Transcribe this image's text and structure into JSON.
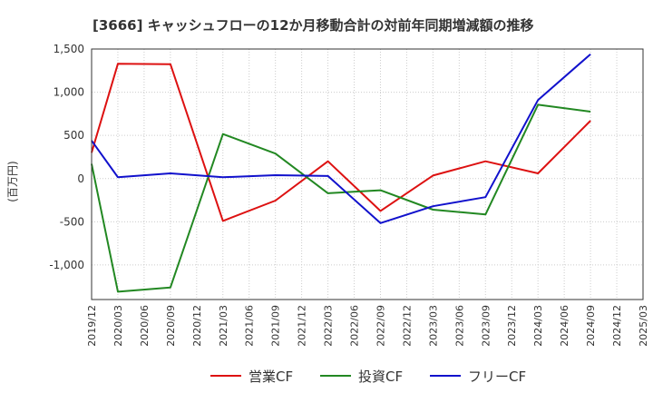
{
  "chart_data": {
    "type": "line",
    "title": "[3666]  キャッシュフローの12か月移動合計の対前年同期増減額の推移",
    "ylabel": "(百万円)",
    "xlabel": "",
    "ylim": [
      -1400,
      1500
    ],
    "yticks": [
      1500,
      1000,
      500,
      0,
      -500,
      -1000
    ],
    "ytick_labels": [
      "1,500",
      "1,000",
      "500",
      "0",
      "-500",
      "-1,000"
    ],
    "categories": [
      "2019/12",
      "2020/03",
      "2020/06",
      "2020/09",
      "2020/12",
      "2021/03",
      "2021/06",
      "2021/09",
      "2021/12",
      "2022/03",
      "2022/06",
      "2022/09",
      "2022/12",
      "2023/03",
      "2023/06",
      "2023/09",
      "2023/12",
      "2024/03",
      "2024/06",
      "2024/09",
      "2024/12",
      "2025/03"
    ],
    "grid": true,
    "legend_position": "bottom",
    "series": [
      {
        "name": "営業CF",
        "color": "#dd1111",
        "points": [
          {
            "x": "2019/12",
            "y": 300
          },
          {
            "x": "2020/03",
            "y": 1330
          },
          {
            "x": "2020/09",
            "y": 1325
          },
          {
            "x": "2021/03",
            "y": -490
          },
          {
            "x": "2021/09",
            "y": -255
          },
          {
            "x": "2022/03",
            "y": 200
          },
          {
            "x": "2022/09",
            "y": -375
          },
          {
            "x": "2023/03",
            "y": 35
          },
          {
            "x": "2023/09",
            "y": 200
          },
          {
            "x": "2024/03",
            "y": 60
          },
          {
            "x": "2024/09",
            "y": 670
          }
        ]
      },
      {
        "name": "投資CF",
        "color": "#228822",
        "points": [
          {
            "x": "2019/12",
            "y": 170
          },
          {
            "x": "2020/03",
            "y": -1310
          },
          {
            "x": "2020/09",
            "y": -1260
          },
          {
            "x": "2021/03",
            "y": 515
          },
          {
            "x": "2021/09",
            "y": 290
          },
          {
            "x": "2022/03",
            "y": -170
          },
          {
            "x": "2022/09",
            "y": -135
          },
          {
            "x": "2023/03",
            "y": -360
          },
          {
            "x": "2023/09",
            "y": -415
          },
          {
            "x": "2024/03",
            "y": 855
          },
          {
            "x": "2024/09",
            "y": 775
          }
        ]
      },
      {
        "name": "フリーCF",
        "color": "#1111cc",
        "points": [
          {
            "x": "2019/12",
            "y": 440
          },
          {
            "x": "2020/03",
            "y": 15
          },
          {
            "x": "2020/09",
            "y": 60
          },
          {
            "x": "2021/03",
            "y": 15
          },
          {
            "x": "2021/09",
            "y": 40
          },
          {
            "x": "2022/03",
            "y": 30
          },
          {
            "x": "2022/09",
            "y": -515
          },
          {
            "x": "2023/03",
            "y": -320
          },
          {
            "x": "2023/09",
            "y": -215
          },
          {
            "x": "2024/03",
            "y": 910
          },
          {
            "x": "2024/09",
            "y": 1440
          }
        ]
      }
    ]
  }
}
